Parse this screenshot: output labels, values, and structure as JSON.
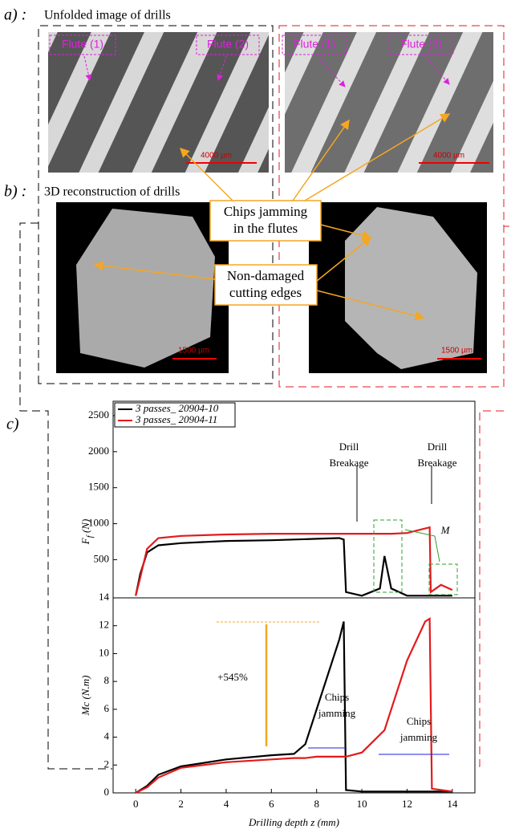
{
  "panel_a": {
    "label": "a) :",
    "title": "Unfolded image of  drills",
    "left": {
      "flute1": "Flute (1)",
      "flute2": "Flute (2)",
      "scale": "4000 µm"
    },
    "right": {
      "flute1": "Flute (1)",
      "flute2": "Flute (2)",
      "scale": "4000 µm"
    }
  },
  "panel_b": {
    "label": "b) :",
    "title": "3D reconstruction of drills",
    "scale_left": "1500 µm",
    "scale_right": "1500 µm"
  },
  "callouts": {
    "chips": [
      "Chips jamming",
      "in the flutes"
    ],
    "edges": [
      "Non-damaged",
      "cutting edges"
    ]
  },
  "panel_c": {
    "label": "c)"
  },
  "chart_data": [
    {
      "type": "line",
      "ylabel": "F",
      "ylabel_subscript": "f",
      "ylabel_unit": "(N)",
      "xlim": [
        -1,
        15
      ],
      "ylim": [
        -30,
        2700
      ],
      "yticks": [
        500,
        1000,
        1500,
        2000,
        2500
      ],
      "legend": "upper left",
      "x": [
        0,
        0.2,
        0.5,
        1,
        2,
        4,
        6,
        8,
        9,
        9.2,
        9.3,
        10,
        10.8,
        11,
        11.3,
        12,
        13,
        13.05,
        13.5,
        14
      ],
      "series": [
        {
          "name": "3 passes_ 20904-10",
          "color": "#000000",
          "values": [
            0,
            300,
            600,
            700,
            730,
            760,
            770,
            790,
            800,
            780,
            50,
            0,
            100,
            550,
            100,
            0,
            0,
            0,
            0,
            0
          ]
        },
        {
          "name": "3 passes_ 20904-11",
          "color": "#e31a1c",
          "values": [
            0,
            250,
            650,
            800,
            830,
            850,
            860,
            860,
            860,
            860,
            860,
            860,
            860,
            860,
            860,
            870,
            950,
            50,
            150,
            80
          ]
        }
      ],
      "annotations": [
        [
          "Drill",
          "Breakage"
        ],
        [
          "Drill",
          "Breakage"
        ],
        "M"
      ]
    },
    {
      "type": "line",
      "xlabel": "Drilling depth z (mm)",
      "ylabel": "Mc (N.m)",
      "xlim": [
        -1,
        15
      ],
      "xticks": [
        0,
        2,
        4,
        6,
        8,
        10,
        12,
        14
      ],
      "ylim": [
        0,
        14
      ],
      "yticks": [
        0,
        2,
        4,
        6,
        8,
        10,
        12,
        14
      ],
      "x": [
        0,
        0.5,
        1,
        2,
        4,
        6,
        7,
        7.5,
        8,
        8.5,
        9,
        9.2,
        9.3,
        10,
        11,
        12,
        12.8,
        13,
        13.1,
        14
      ],
      "series": [
        {
          "color": "#000000",
          "values": [
            0,
            0.5,
            1.3,
            1.9,
            2.4,
            2.7,
            2.8,
            3.5,
            6,
            8.5,
            11,
            12.3,
            0.2,
            0.1,
            0.1,
            0.1,
            0.1,
            0.1,
            0.1,
            0.1
          ]
        },
        {
          "color": "#e31a1c",
          "values": [
            0,
            0.4,
            1.1,
            1.8,
            2.2,
            2.4,
            2.5,
            2.5,
            2.6,
            2.6,
            2.6,
            2.6,
            2.6,
            2.9,
            4.5,
            9.5,
            12.3,
            12.5,
            0.3,
            0.1
          ]
        }
      ],
      "annotations": [
        "+545%",
        [
          "Chips",
          "jamming"
        ],
        [
          "Chips",
          "jamming"
        ]
      ]
    }
  ]
}
